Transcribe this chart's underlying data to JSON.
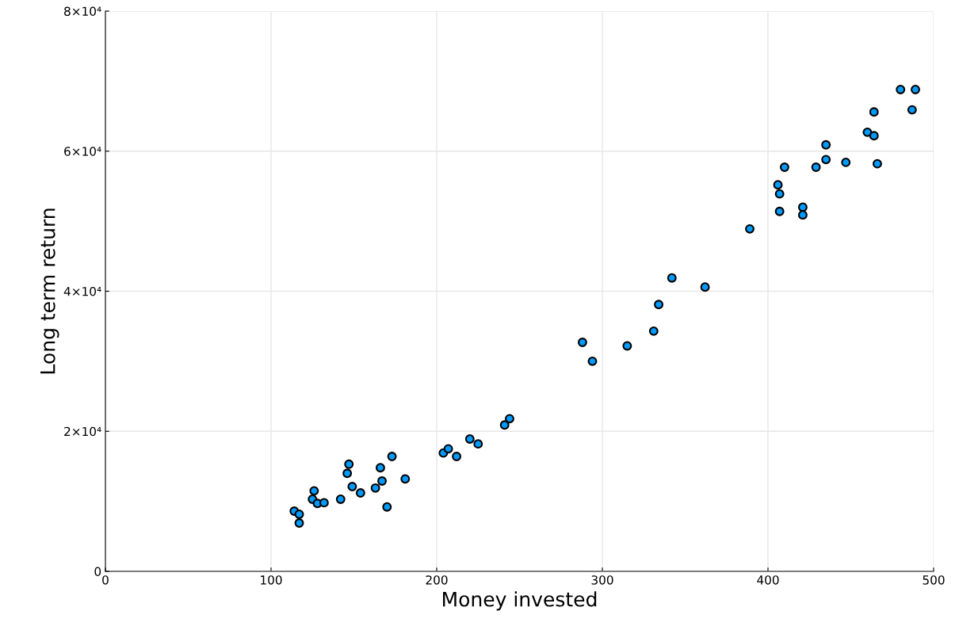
{
  "chart_data": {
    "type": "scatter",
    "xlabel": "Money invested",
    "ylabel": "Long term return",
    "marker": "circle",
    "grid": true,
    "legend": false,
    "xlim": [
      0,
      500
    ],
    "xticks": [
      0,
      100,
      200,
      300,
      400,
      500
    ],
    "ylim": [
      0,
      80000
    ],
    "yticks": [
      {
        "value": 0,
        "label": "0"
      },
      {
        "value": 20000,
        "label": "2×10⁴"
      },
      {
        "value": 40000,
        "label": "4×10⁴"
      },
      {
        "value": 60000,
        "label": "6×10⁴"
      },
      {
        "value": 80000,
        "label": "8×10⁴"
      }
    ],
    "series": [
      {
        "color": "#009afa",
        "x": [
          114,
          117,
          117,
          126,
          125,
          128,
          132,
          142,
          147,
          146,
          149,
          154,
          163,
          166,
          167,
          170,
          173,
          181,
          204,
          207,
          212,
          220,
          225,
          241,
          244,
          288,
          294,
          315,
          331,
          334,
          342,
          362,
          389,
          406,
          407,
          407,
          410,
          421,
          421,
          429,
          435,
          435,
          447,
          460,
          464,
          464,
          466,
          480,
          489,
          487
        ],
        "values": [
          8600,
          8150,
          6900,
          11500,
          10300,
          9700,
          9800,
          10300,
          15300,
          14000,
          12100,
          11200,
          11900,
          14800,
          12900,
          9200,
          16400,
          13200,
          16900,
          17500,
          16400,
          18900,
          18200,
          20900,
          21800,
          32700,
          30000,
          32200,
          34300,
          38100,
          41900,
          40600,
          48900,
          55200,
          53900,
          51400,
          57700,
          52000,
          50900,
          57700,
          60900,
          58800,
          58400,
          62700,
          62200,
          65600,
          58200,
          68800,
          68800,
          65900
        ]
      }
    ]
  }
}
